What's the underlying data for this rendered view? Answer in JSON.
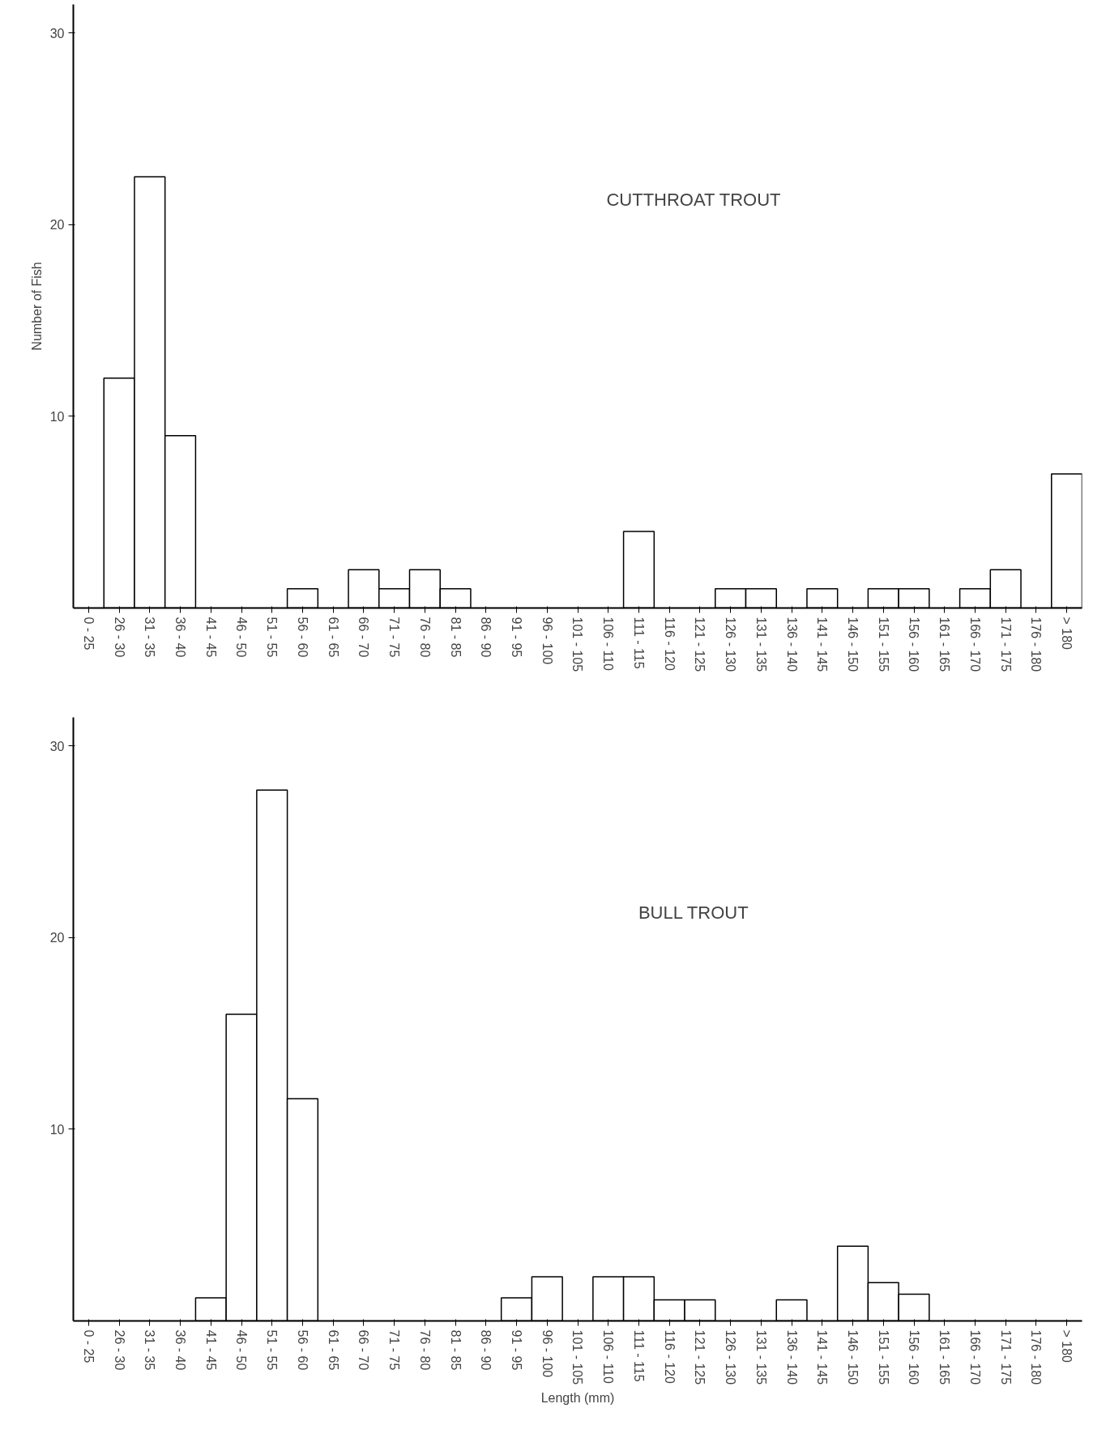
{
  "chart_data": [
    {
      "type": "bar",
      "title": "CUTTHROAT TROUT",
      "ylabel": "Number of Fish",
      "categories": [
        "0 - 25",
        "26 - 30",
        "31 - 35",
        "36 - 40",
        "41 - 45",
        "46 - 50",
        "51 - 55",
        "56 - 60",
        "61 - 65",
        "66 - 70",
        "71 - 75",
        "76 - 80",
        "81 - 85",
        "86 - 90",
        "91 - 95",
        "96 - 100",
        "101 - 105",
        "106 - 110",
        "111 - 115",
        "116 - 120",
        "121 - 125",
        "126 - 130",
        "131 - 135",
        "136 - 140",
        "141 - 145",
        "146 - 150",
        "151 - 155",
        "156 - 160",
        "161 - 165",
        "166 - 170",
        "171 - 175",
        "176 - 180",
        "> 180"
      ],
      "values": [
        0,
        12,
        22.5,
        9,
        0,
        0,
        0,
        1,
        0,
        2,
        1,
        2,
        1,
        0,
        0,
        0,
        0,
        0,
        4,
        0,
        0,
        1,
        1,
        0,
        1,
        0,
        1,
        1,
        0,
        1,
        2,
        0,
        7
      ],
      "color": "#ffffff",
      "ylim": [
        0,
        31.5
      ],
      "yticks": [
        10,
        20,
        30
      ],
      "grid": false
    },
    {
      "type": "bar",
      "title": "BULL TROUT",
      "xlabel": "Length (mm)",
      "categories": [
        "0 - 25",
        "26 - 30",
        "31 - 35",
        "36 - 40",
        "41 - 45",
        "46 - 50",
        "51 - 55",
        "56 - 60",
        "61 - 65",
        "66 - 70",
        "71 - 75",
        "76 - 80",
        "81 - 85",
        "86 - 90",
        "91 - 95",
        "96 - 100",
        "101 - 105",
        "106 - 110",
        "111 - 115",
        "116 - 120",
        "121 - 125",
        "126 - 130",
        "131 - 135",
        "136 - 140",
        "141 - 145",
        "146 - 150",
        "151 - 155",
        "156 - 160",
        "161 - 165",
        "166 - 170",
        "171 - 175",
        "176 - 180",
        "> 180"
      ],
      "values": [
        0,
        0,
        0,
        0,
        1.2,
        16,
        27.7,
        11.6,
        0,
        0,
        0,
        0,
        0,
        0,
        1.2,
        2.3,
        0,
        2.3,
        2.3,
        1.1,
        1.1,
        0,
        0,
        1.1,
        0,
        3.9,
        2,
        1.4,
        0,
        0,
        0,
        0,
        0
      ],
      "color": "#ffffff",
      "ylim": [
        0,
        31.5
      ],
      "yticks": [
        10,
        20,
        30
      ],
      "grid": false
    }
  ]
}
